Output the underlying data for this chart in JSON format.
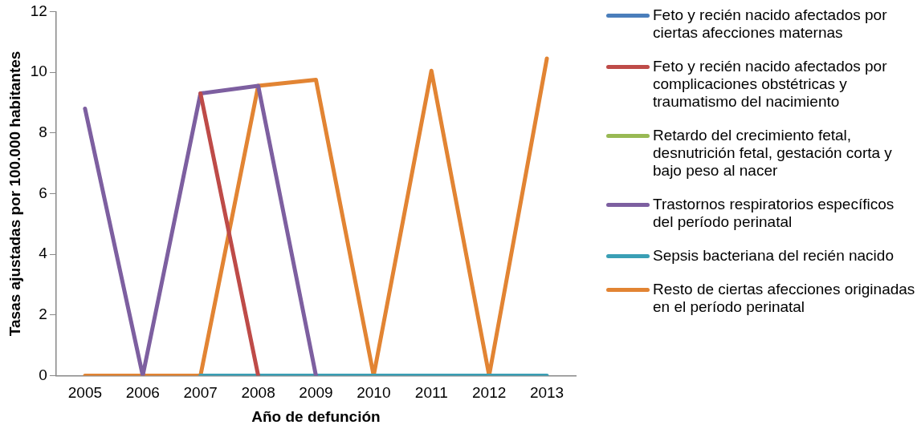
{
  "chart_data": {
    "type": "line",
    "xlabel": "Año de defunción",
    "ylabel": "Tasas ajustadas por 100.000 habitantes",
    "categories": [
      "2005",
      "2006",
      "2007",
      "2008",
      "2009",
      "2010",
      "2011",
      "2012",
      "2013"
    ],
    "ylim": [
      0,
      12
    ],
    "yticks": [
      0,
      2,
      4,
      6,
      8,
      10,
      12
    ],
    "grid": false,
    "legend": "right",
    "marker": "none",
    "line_style": "solid",
    "series": [
      {
        "name": "Feto y recién nacido afectados por ciertas afecciones maternas",
        "color": "#4a7ebb",
        "values": [
          null,
          null,
          null,
          null,
          null,
          null,
          null,
          null,
          null
        ]
      },
      {
        "name": "Feto y recién nacido afectados por complicaciones obstétricas y traumatismo del nacimiento",
        "color": "#be4b48",
        "values": [
          null,
          null,
          9.3,
          0,
          null,
          null,
          null,
          null,
          null
        ]
      },
      {
        "name": "Retardo del crecimiento fetal, desnutrición fetal, gestación corta y bajo peso al nacer",
        "color": "#98b954",
        "values": [
          null,
          null,
          null,
          null,
          null,
          null,
          null,
          null,
          null
        ]
      },
      {
        "name": "Trastornos respiratorios específicos del período perinatal",
        "color": "#7d5fa0",
        "values": [
          8.8,
          0,
          9.3,
          9.55,
          0,
          null,
          null,
          null,
          null
        ]
      },
      {
        "name": "Sepsis bacteriana del recién nacido",
        "color": "#3a9fb5",
        "values": [
          null,
          null,
          0,
          0,
          0,
          0,
          0,
          0,
          0
        ]
      },
      {
        "name": "Resto de ciertas afecciones originadas en el período perinatal",
        "color": "#e28433",
        "values": [
          0,
          0,
          0,
          9.55,
          9.75,
          0,
          10.05,
          0,
          10.45
        ]
      }
    ]
  }
}
